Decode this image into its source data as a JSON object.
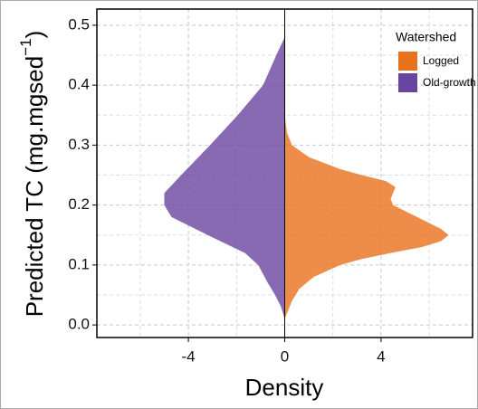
{
  "chart_data": {
    "type": "mirrored-density",
    "xlabel": "Density",
    "ylabel_parts": [
      "Predicted TC (mg.mgsed",
      "−1",
      ")"
    ],
    "xlim": [
      -7.8,
      7.8
    ],
    "ylim": [
      -0.021,
      0.527
    ],
    "xticks": [
      -4,
      0,
      4
    ],
    "xminor": [
      -6,
      -2,
      2,
      6
    ],
    "yticks": [
      {
        "value": 0,
        "label": "0.0"
      },
      {
        "value": 0.1,
        "label": "0.1"
      },
      {
        "value": 0.2,
        "label": "0.2"
      },
      {
        "value": 0.3,
        "label": "0.3"
      },
      {
        "value": 0.4,
        "label": "0.4"
      },
      {
        "value": 0.5,
        "label": "0.5"
      }
    ],
    "yminor": [
      0.05,
      0.15,
      0.25,
      0.35,
      0.45
    ],
    "grid": true,
    "legend": {
      "title": "Watershed",
      "position": "top-right"
    },
    "series": [
      {
        "name": "Logged",
        "color": "#e8711c",
        "y": [
          0.35,
          0.32,
          0.3,
          0.28,
          0.26,
          0.25,
          0.24,
          0.23,
          0.22,
          0.21,
          0.2,
          0.18,
          0.16,
          0.15,
          0.14,
          0.13,
          0.12,
          0.11,
          0.1,
          0.08,
          0.06,
          0.04,
          0.02,
          0.01
        ],
        "values": [
          0,
          0.1,
          0.3,
          1.0,
          2.3,
          3.2,
          4.2,
          4.6,
          4.5,
          4.4,
          4.5,
          5.5,
          6.5,
          6.8,
          6.5,
          5.7,
          4.4,
          3.2,
          2.3,
          1.2,
          0.6,
          0.3,
          0.1,
          0
        ]
      },
      {
        "name": "Old-growth",
        "color": "#6a45a0",
        "y": [
          0.48,
          0.45,
          0.4,
          0.35,
          0.3,
          0.25,
          0.22,
          0.2,
          0.18,
          0.15,
          0.12,
          0.1,
          0.07,
          0.05,
          0.03,
          0.01
        ],
        "values": [
          0,
          -0.35,
          -0.9,
          -1.95,
          -3.1,
          -4.3,
          -5.0,
          -5.0,
          -4.7,
          -3.2,
          -1.65,
          -1.1,
          -0.7,
          -0.4,
          -0.15,
          0
        ]
      }
    ]
  }
}
